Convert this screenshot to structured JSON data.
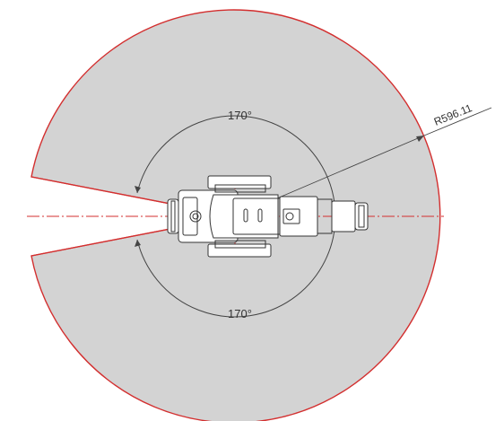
{
  "diagram": {
    "angle_top_label": "170°",
    "angle_bottom_label": "170°",
    "radius_label": "R596.11",
    "colors": {
      "zone_fill": "#d3d3d3",
      "zone_edge": "#d32f2f",
      "axis_line": "#d32f2f",
      "drawing_line": "#333333",
      "background": "#ffffff"
    }
  }
}
